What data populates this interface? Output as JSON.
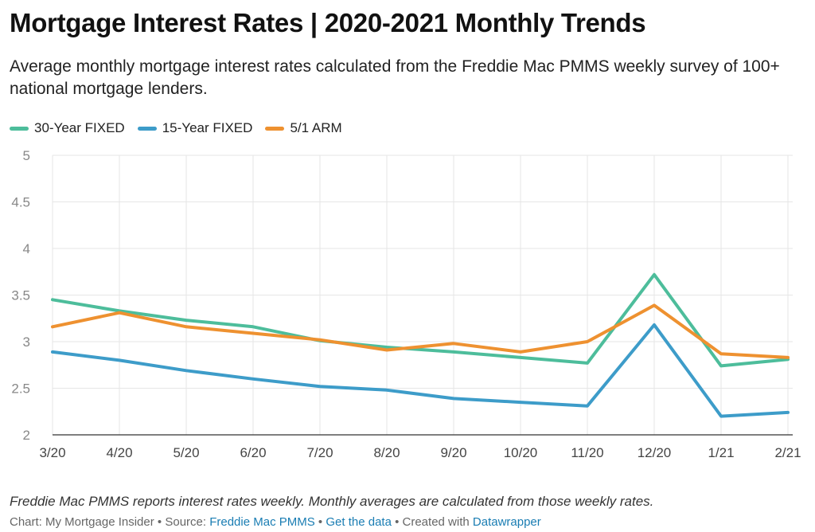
{
  "title": "Mortgage Interest Rates | 2020-2021 Monthly Trends",
  "subtitle": "Average monthly mortgage interest rates calculated from the Freddie Mac PMMS weekly survey of 100+ national mortgage lenders.",
  "note": "Freddie Mac PMMS reports interest rates weekly. Monthly averages are calculated from those weekly rates.",
  "footer": {
    "chart_credit": "Chart: My Mortgage Insider",
    "sep": " • ",
    "source_label": "Source: ",
    "source_link": "Freddie Mac PMMS",
    "get_data": "Get the data",
    "created_label": "Created with ",
    "created_link": "Datawrapper"
  },
  "chart_data": {
    "type": "line",
    "x": [
      "3/20",
      "4/20",
      "5/20",
      "6/20",
      "7/20",
      "8/20",
      "9/20",
      "10/20",
      "11/20",
      "12/20",
      "1/21",
      "2/21"
    ],
    "series": [
      {
        "name": "30-Year FIXED",
        "color": "#4dbd9b",
        "values": [
          3.45,
          3.33,
          3.23,
          3.16,
          3.01,
          2.94,
          2.89,
          2.83,
          2.77,
          3.72,
          2.74,
          2.81
        ]
      },
      {
        "name": "15-Year FIXED",
        "color": "#3d9cc9",
        "values": [
          2.89,
          2.8,
          2.69,
          2.6,
          2.52,
          2.48,
          2.39,
          2.35,
          2.31,
          3.18,
          2.2,
          2.24
        ]
      },
      {
        "name": "5/1 ARM",
        "color": "#ee9130",
        "values": [
          3.16,
          3.31,
          3.16,
          3.09,
          3.02,
          2.91,
          2.98,
          2.89,
          3.0,
          3.39,
          2.87,
          2.83
        ]
      }
    ],
    "yticks": [
      "2",
      "2.5",
      "3",
      "3.5",
      "4",
      "4.5",
      "5"
    ],
    "ylim": [
      2,
      5
    ],
    "grid": true,
    "legend_position": "top-left"
  }
}
